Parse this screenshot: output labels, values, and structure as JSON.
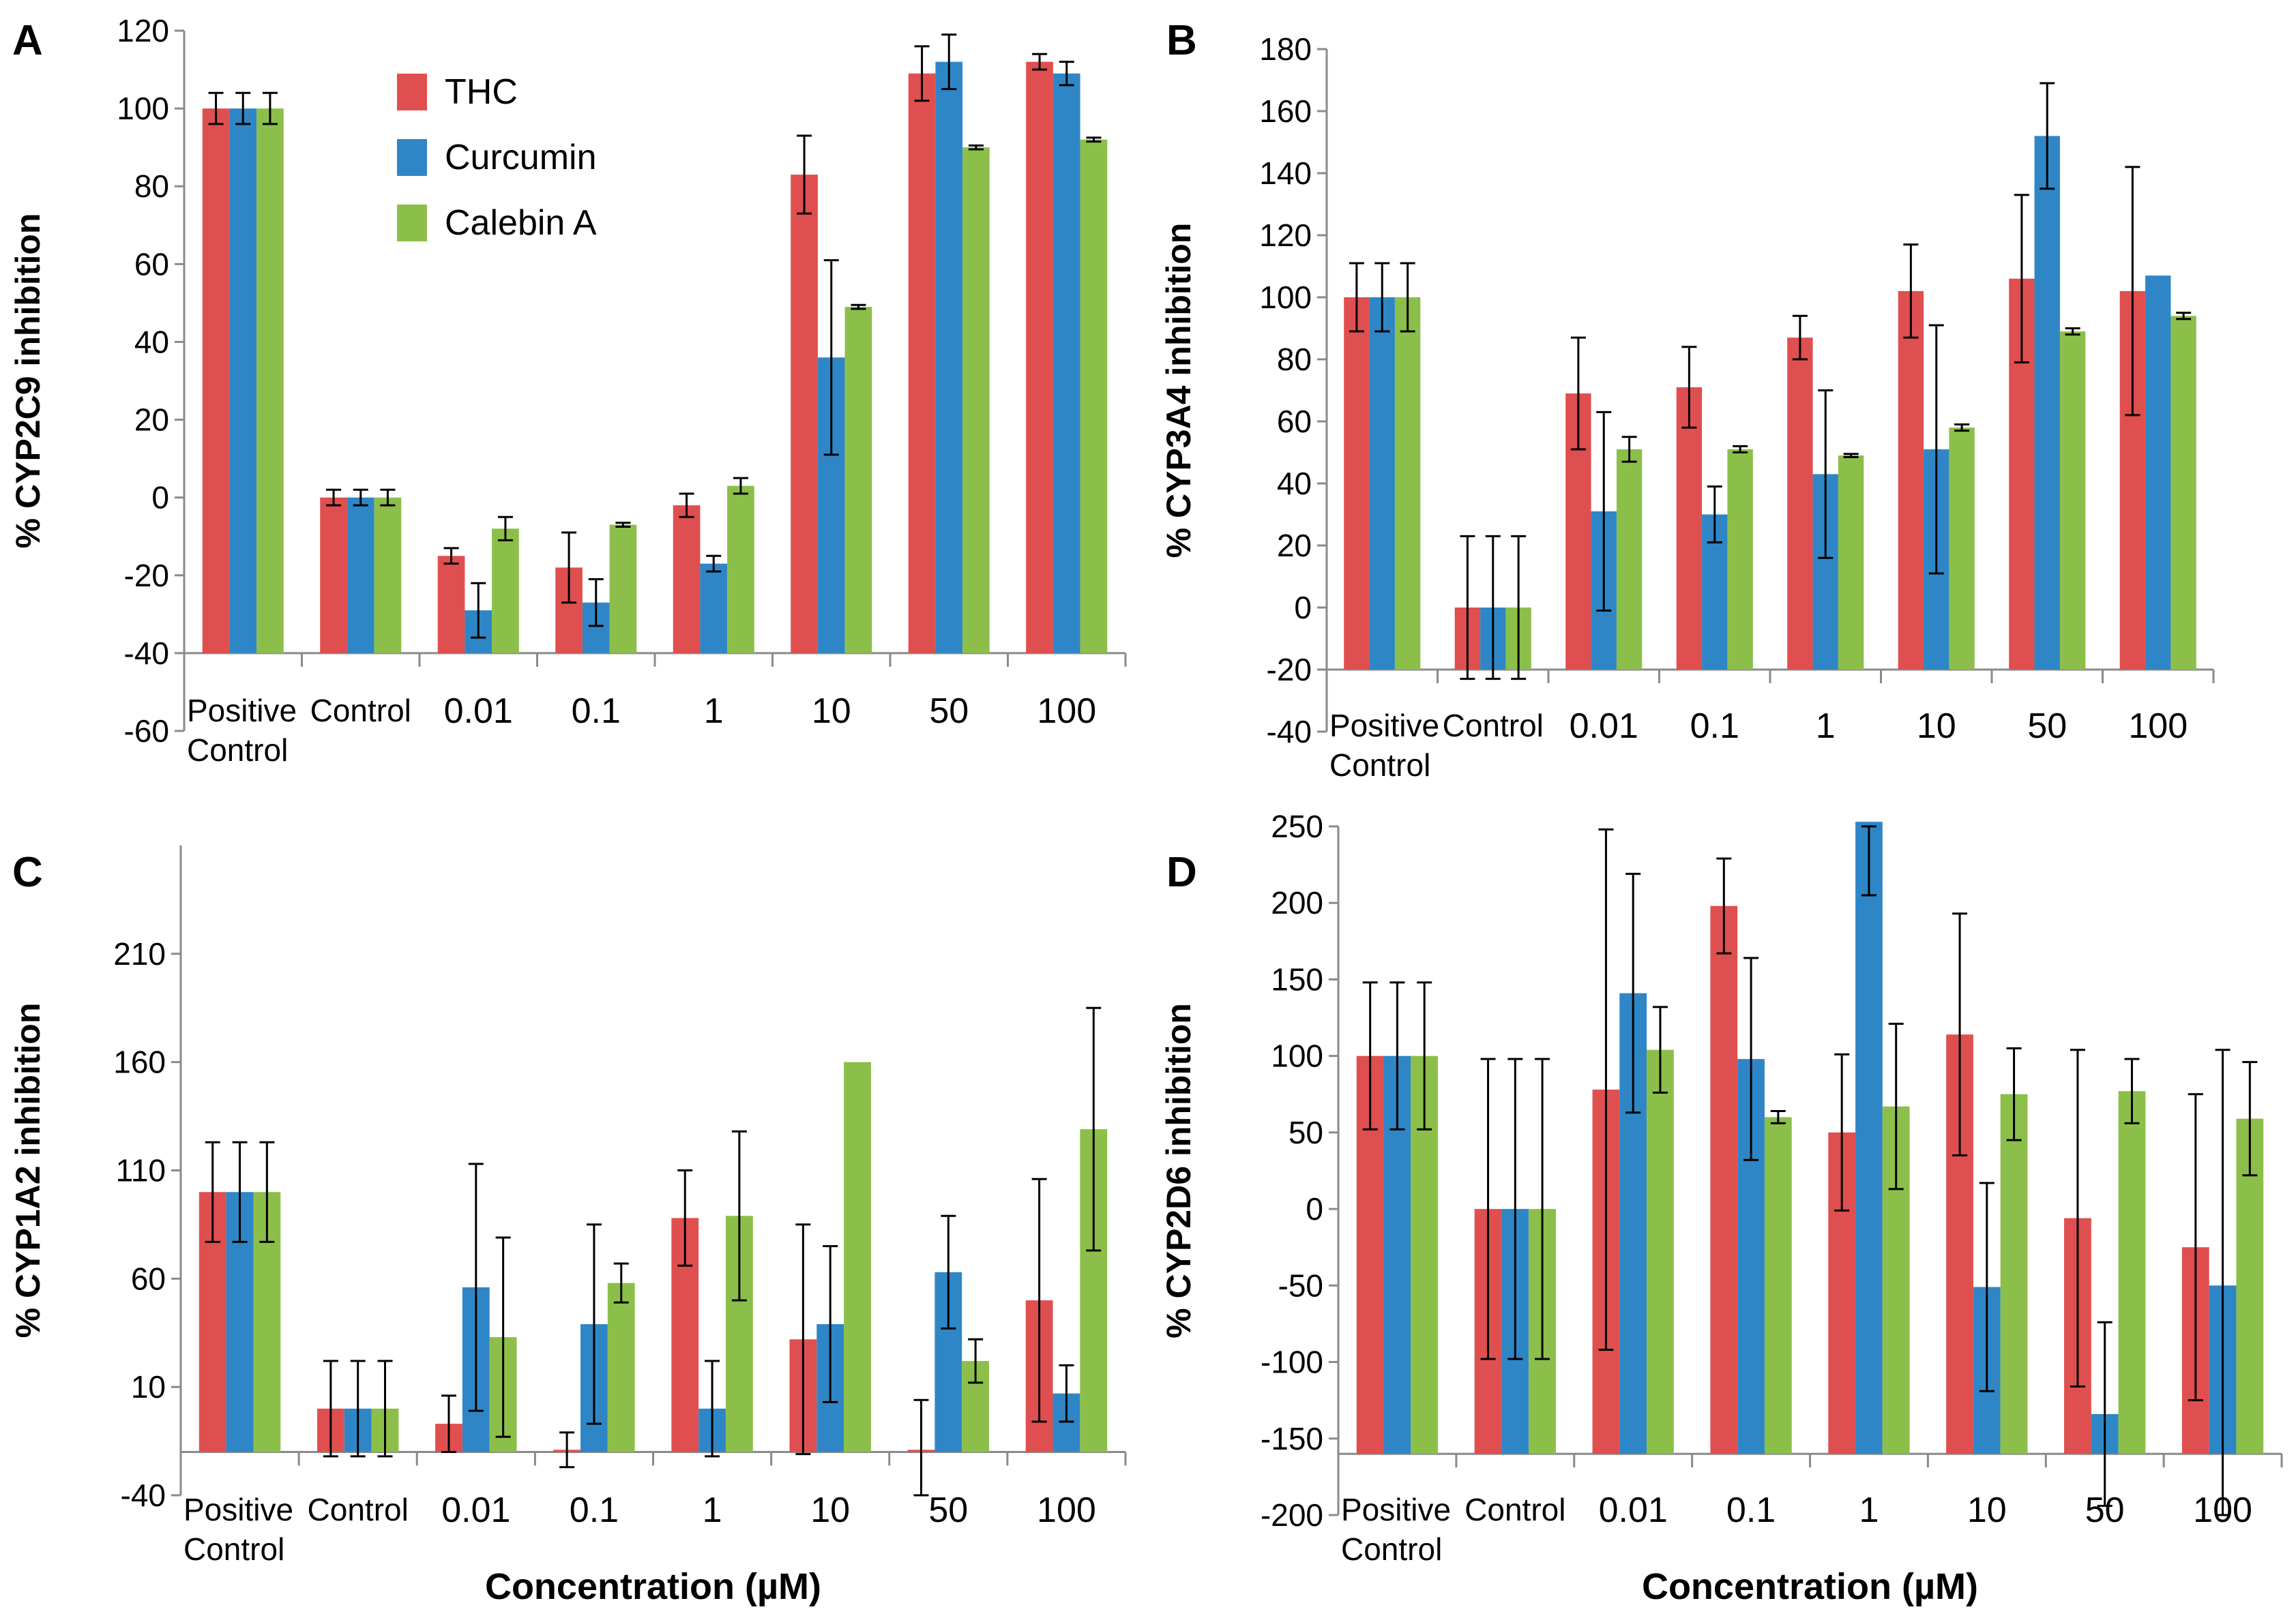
{
  "colors": {
    "THC": "#e04f4f",
    "Curcumin": "#2f86c6",
    "Calebin A": "#8cbf4a"
  },
  "legend": [
    "THC",
    "Curcumin",
    "Calebin A"
  ],
  "chart_data": [
    {
      "panel": "A",
      "type": "bar",
      "ylabel": "% CYP2C9 inhibition",
      "xlabel": "",
      "ylim": [
        -60,
        120
      ],
      "yticks": [
        -60,
        -40,
        -20,
        0,
        20,
        40,
        60,
        80,
        100,
        120
      ],
      "baseline": -40,
      "categories": [
        "Positive Control",
        "Control",
        "0.01",
        "0.1",
        "1",
        "10",
        "50",
        "100"
      ],
      "series": [
        {
          "name": "THC",
          "values": [
            100,
            0,
            -15,
            -18,
            -2,
            83,
            109,
            112
          ],
          "errors": [
            4,
            2,
            2,
            9,
            3,
            10,
            7,
            2
          ]
        },
        {
          "name": "Curcumin",
          "values": [
            100,
            0,
            -29,
            -27,
            -17,
            36,
            112,
            109
          ],
          "errors": [
            4,
            2,
            7,
            6,
            2,
            25,
            7,
            3
          ]
        },
        {
          "name": "Calebin A",
          "values": [
            100,
            0,
            -8,
            -7,
            3,
            49,
            90,
            92
          ],
          "errors": [
            4,
            2,
            3,
            0.5,
            2,
            0.5,
            0.5,
            0.5
          ]
        }
      ]
    },
    {
      "panel": "B",
      "type": "bar",
      "ylabel": "% CYP3A4 inhibition",
      "xlabel": "",
      "ylim": [
        -40,
        180
      ],
      "yticks": [
        -40,
        -20,
        0,
        20,
        40,
        60,
        80,
        100,
        120,
        140,
        160,
        180
      ],
      "baseline": -20,
      "categories": [
        "Positive Control",
        "Control",
        "0.01",
        "0.1",
        "1",
        "10",
        "50",
        "100"
      ],
      "series": [
        {
          "name": "THC",
          "values": [
            100,
            0,
            69,
            71,
            87,
            102,
            106,
            102
          ],
          "errors": [
            11,
            23,
            18,
            13,
            7,
            15,
            27,
            40
          ]
        },
        {
          "name": "Curcumin",
          "values": [
            100,
            0,
            31,
            30,
            43,
            51,
            152,
            107
          ],
          "errors": [
            11,
            23,
            32,
            9,
            27,
            40,
            17,
            0
          ]
        },
        {
          "name": "Calebin A",
          "values": [
            100,
            0,
            51,
            51,
            49,
            58,
            89,
            94
          ],
          "errors": [
            11,
            23,
            4,
            1,
            0.5,
            1,
            1,
            1
          ]
        }
      ]
    },
    {
      "panel": "C",
      "type": "bar",
      "ylabel": "% CYP1A2 inhibition",
      "xlabel": "Concentration (µM)",
      "ylim": [
        -40,
        260
      ],
      "yticks": [
        -40,
        10,
        60,
        110,
        160,
        210
      ],
      "baseline": -20,
      "categories": [
        "Positive Control",
        "Control",
        "0.01",
        "0.1",
        "1",
        "10",
        "50",
        "100"
      ],
      "series": [
        {
          "name": "THC",
          "values": [
            100,
            0,
            -7,
            -19,
            88,
            32,
            -19,
            50
          ],
          "errors": [
            23,
            22,
            13,
            8,
            22,
            53,
            23,
            56
          ]
        },
        {
          "name": "Curcumin",
          "values": [
            100,
            0,
            56,
            39,
            0,
            39,
            63,
            7
          ],
          "errors": [
            23,
            22,
            57,
            46,
            22,
            36,
            26,
            13
          ]
        },
        {
          "name": "Calebin A",
          "values": [
            100,
            0,
            33,
            58,
            89,
            160,
            22,
            129
          ],
          "errors": [
            23,
            22,
            46,
            9,
            39,
            0,
            10,
            56
          ]
        }
      ]
    },
    {
      "panel": "D",
      "type": "bar",
      "ylabel": "% CYP2D6 inhibition",
      "xlabel": "Concentration (µM)",
      "ylim": [
        -200,
        250
      ],
      "yticks": [
        -200,
        -150,
        -100,
        -50,
        0,
        50,
        100,
        150,
        200,
        250
      ],
      "baseline": -160,
      "categories": [
        "Positive Control",
        "Control",
        "0.01",
        "0.1",
        "1",
        "10",
        "50",
        "100"
      ],
      "series": [
        {
          "name": "THC",
          "values": [
            100,
            0,
            78,
            198,
            50,
            114,
            -6,
            -25
          ],
          "errors": [
            48,
            98,
            170,
            31,
            51,
            79,
            110,
            100
          ]
        },
        {
          "name": "Curcumin",
          "values": [
            100,
            0,
            141,
            98,
            253,
            -51,
            -134,
            -50
          ],
          "errors": [
            48,
            98,
            78,
            66,
            48,
            68,
            60,
            154
          ]
        },
        {
          "name": "Calebin A",
          "values": [
            100,
            0,
            104,
            60,
            67,
            75,
            77,
            59
          ],
          "errors": [
            48,
            98,
            28,
            4,
            54,
            30,
            21,
            37
          ]
        }
      ]
    }
  ]
}
